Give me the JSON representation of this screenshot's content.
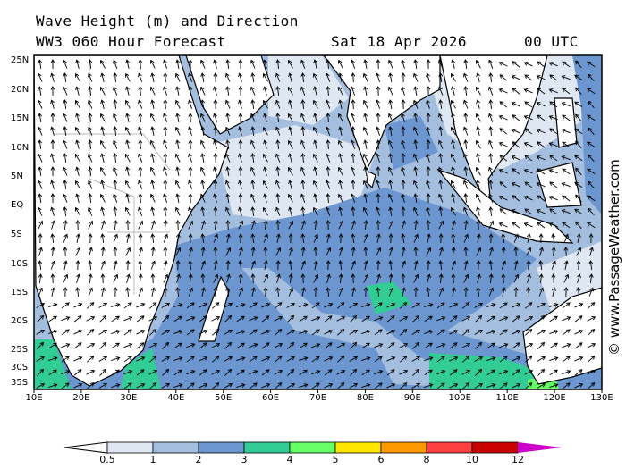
{
  "header": {
    "title": "Wave Height (m) and Direction",
    "model": "WW3 060 Hour Forecast",
    "date": "Sat 18 Apr 2026",
    "time": "00 UTC"
  },
  "map": {
    "region": "Indian Ocean",
    "lat_labels": [
      "25N",
      "20N",
      "15N",
      "10N",
      "5N",
      "EQ",
      "5S",
      "10S",
      "15S",
      "20S",
      "25S",
      "30S",
      "35S"
    ],
    "lon_labels": [
      "10E",
      "20E",
      "30E",
      "40E",
      "50E",
      "60E",
      "70E",
      "80E",
      "90E",
      "100E",
      "110E",
      "120E",
      "130E"
    ],
    "colors": {
      "land": "#ffffff",
      "coast": "#000000",
      "border": "#a0a0a0",
      "lt05_1": "#dfe7f3",
      "r1_2": "#a4bedf",
      "r2_3": "#6b96cf",
      "r3_4": "#32cc97",
      "r4_5": "#66ff66"
    },
    "arrow_icon": "wave-direction-arrow"
  },
  "legend": {
    "labels": [
      "0.5",
      "1",
      "2",
      "3",
      "4",
      "5",
      "6",
      "8",
      "10",
      "12"
    ],
    "colors": [
      "#dfe7f3",
      "#a4bedf",
      "#6b96cf",
      "#32cc97",
      "#66ff66",
      "#ffe600",
      "#ff9900",
      "#ff4040",
      "#c80000"
    ],
    "over_color": "#cc00cc",
    "under_color": "#ffffff"
  },
  "watermark": "© www.PassageWeather.com"
}
